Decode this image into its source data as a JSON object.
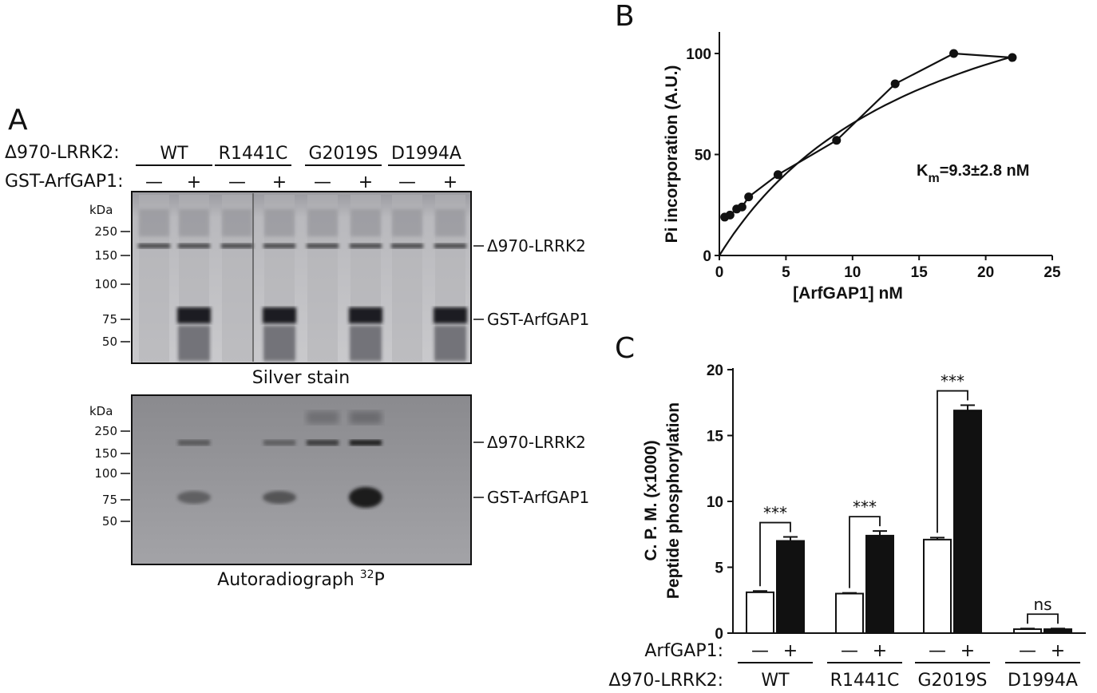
{
  "panel_a": {
    "letter": "A",
    "row1_label": "Δ970-LRRK2:",
    "row2_label": "GST-ArfGAP1:",
    "groups": [
      "WT",
      "R1441C",
      "G2019S",
      "D1994A"
    ],
    "minus": "—",
    "plus": "+",
    "kda": "kDa",
    "silver_markers": [
      "250",
      "150",
      "100",
      "75",
      "50"
    ],
    "auto_markers": [
      "250",
      "150",
      "100",
      "75",
      "50"
    ],
    "band_lrrk2": "Δ970-LRRK2",
    "band_gap": "GST-ArfGAP1",
    "silver_caption": "Silver stain",
    "auto_caption": "Autoradiograph ",
    "auto_caption_sup": "32",
    "auto_caption_end": "P"
  },
  "chart_data": [
    {
      "panel": "B",
      "type": "scatter",
      "xlabel": "[ArfGAP1] nM",
      "ylabel": "Pi incorporation (A.U.)",
      "xlim": [
        0,
        25
      ],
      "ylim": [
        0,
        110
      ],
      "xticks": [
        "0",
        "5",
        "10",
        "15",
        "20",
        "25"
      ],
      "yticks": [
        "0",
        "50",
        "100"
      ],
      "x": [
        0.4,
        0.8,
        1.3,
        1.7,
        2.2,
        4.4,
        8.8,
        13.2,
        17.6,
        22.0
      ],
      "y": [
        19,
        20,
        23,
        24,
        29,
        40,
        57,
        85,
        100,
        98
      ],
      "fit_vmax": 170,
      "fit_km": 16,
      "annotation_main": "K",
      "annotation_sub": "m",
      "annotation_rest": "=9.3±2.8 nM"
    },
    {
      "panel": "C",
      "type": "bar",
      "ylabel_line1": "C. P. M. (x1000)",
      "ylabel_line2": "Peptide phosphorylation",
      "ylim": [
        0,
        20
      ],
      "yticks": [
        "0",
        "5",
        "10",
        "15",
        "20"
      ],
      "groups": [
        "WT",
        "R1441C",
        "G2019S",
        "D1994A"
      ],
      "series": [
        {
          "values": [
            3.1,
            3.0,
            7.1,
            0.3
          ],
          "errors": [
            0.1,
            0.05,
            0.15,
            0.05
          ],
          "color": "#ffffff"
        },
        {
          "values": [
            7.0,
            7.4,
            16.9,
            0.3
          ],
          "errors": [
            0.3,
            0.35,
            0.4,
            0.05
          ],
          "color": "#111111"
        }
      ],
      "significance": [
        "***",
        "***",
        "***",
        "ns"
      ],
      "row1_label": "ArfGAP1:",
      "row2_label": "Δ970-LRRK2:",
      "minus": "—",
      "plus": "+"
    }
  ],
  "panel_c_letter": "C"
}
